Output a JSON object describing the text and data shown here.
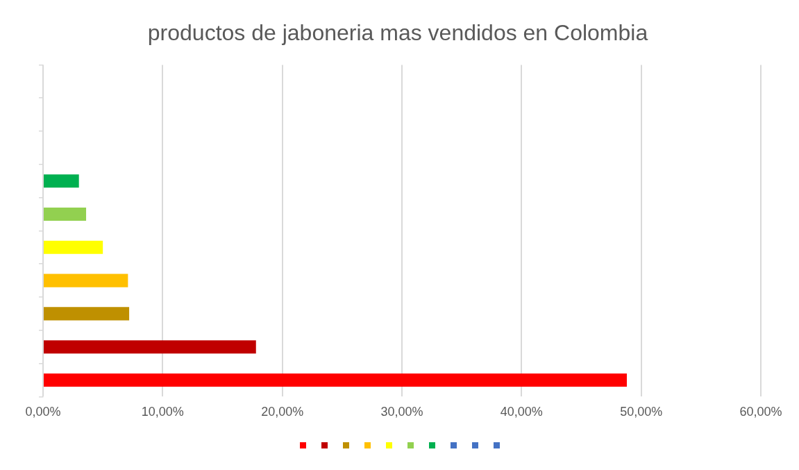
{
  "chart_data": {
    "type": "bar",
    "orientation": "horizontal",
    "title": "productos de jaboneria mas vendidos en Colombia",
    "categories": [
      null,
      null,
      null,
      null,
      null,
      null,
      null,
      null,
      null,
      null
    ],
    "values": [
      0,
      0,
      0,
      3.0,
      3.6,
      5.0,
      7.1,
      7.2,
      17.8,
      48.8
    ],
    "colors": [
      "#4472c4",
      "#4472c4",
      "#4472c4",
      "#00b050",
      "#92d050",
      "#ffff00",
      "#ffc000",
      "#bf9000",
      "#c00000",
      "#ff0000"
    ],
    "xlim": [
      0,
      60
    ],
    "xticks": [
      {
        "value": 0,
        "label": "0,00%"
      },
      {
        "value": 10,
        "label": "10,00%"
      },
      {
        "value": 20,
        "label": "20,00%"
      },
      {
        "value": 30,
        "label": "30,00%"
      },
      {
        "value": 40,
        "label": "40,00%"
      },
      {
        "value": 50,
        "label": "50,00%"
      },
      {
        "value": 60,
        "label": "60,00%"
      }
    ],
    "grid": "x"
  }
}
